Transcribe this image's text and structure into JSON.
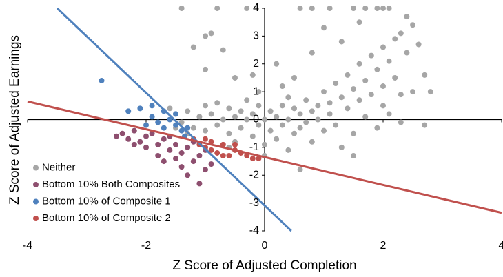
{
  "chart_data": {
    "type": "scatter",
    "x_label": "Z Score of Adjusted Completion",
    "y_label": "Z Score of Adjusted Earnings",
    "xlim": [
      -4,
      4
    ],
    "ylim": [
      -4,
      4
    ],
    "xticks": [
      -4,
      -2,
      0,
      2,
      4
    ],
    "yticks": [
      -4,
      -3,
      -2,
      -1,
      0,
      1,
      2,
      3,
      4
    ],
    "grid": false,
    "legend_position": "lower left",
    "series": [
      {
        "name": "Neither",
        "color": "#a6a6a6",
        "x": [
          -1.6,
          -1.5,
          -1.4,
          -1.3,
          -1.2,
          -1.1,
          -1.0,
          -1.0,
          -0.9,
          -0.8,
          -0.8,
          -0.7,
          -0.6,
          -0.6,
          -0.5,
          -0.5,
          -0.4,
          -0.4,
          -0.3,
          -0.3,
          -0.2,
          -0.2,
          -0.1,
          -0.1,
          0.0,
          0.0,
          0.1,
          0.1,
          0.2,
          0.2,
          0.3,
          0.3,
          0.4,
          0.4,
          0.5,
          0.5,
          0.6,
          0.6,
          0.7,
          0.7,
          0.8,
          0.8,
          0.9,
          0.9,
          1.0,
          1.0,
          1.1,
          1.1,
          1.2,
          1.2,
          1.3,
          1.4,
          1.4,
          1.5,
          1.5,
          1.6,
          1.6,
          1.7,
          1.8,
          1.8,
          1.9,
          2.0,
          2.0,
          2.1,
          2.1,
          2.2,
          2.2,
          2.3,
          2.3,
          2.4,
          2.5,
          2.5,
          2.6,
          2.7,
          2.7,
          2.8,
          -1.0,
          -0.9,
          -0.7,
          -1.2,
          -1.0,
          -0.5,
          0.2,
          0.5,
          0.8,
          -0.2,
          0.6,
          1.3,
          1.5,
          -1.4,
          -0.8,
          -0.3,
          0.6,
          0.8,
          1.1,
          1.5,
          1.7,
          1.9,
          2.0,
          2.1,
          1.6,
          1.3,
          1.0,
          2.4,
          0.4,
          -0.6,
          0.0,
          1.9,
          2.3,
          -1.5,
          -1.3,
          -0.1,
          0.3,
          1.7,
          2.0
        ],
        "y": [
          0.4,
          0.2,
          -0.1,
          0.3,
          -0.3,
          0.1,
          0.5,
          -0.4,
          0.2,
          -0.2,
          0.6,
          0.0,
          -0.5,
          0.4,
          0.1,
          -0.8,
          0.3,
          -0.3,
          0.0,
          0.7,
          -0.6,
          0.2,
          -0.2,
          0.5,
          0.0,
          -0.9,
          0.3,
          -0.4,
          0.1,
          -0.7,
          0.5,
          -0.2,
          0.0,
          -1.1,
          0.4,
          -0.5,
          0.2,
          -0.3,
          0.7,
          -0.1,
          0.3,
          -0.8,
          0.5,
          0.0,
          1.0,
          -0.4,
          0.6,
          0.2,
          1.3,
          -0.2,
          0.8,
          0.4,
          1.6,
          1.1,
          -0.5,
          2.0,
          0.7,
          1.4,
          2.3,
          0.9,
          1.8,
          2.6,
          1.2,
          2.1,
          0.2,
          2.9,
          1.5,
          3.1,
          0.9,
          2.4,
          3.4,
          1.0,
          2.7,
          1.6,
          -0.2,
          1.0,
          3.0,
          3.1,
          2.5,
          2.6,
          1.8,
          1.5,
          2.0,
          1.5,
          2.4,
          1.6,
          -1.8,
          -1.0,
          -1.3,
          4.0,
          4.0,
          4.0,
          4.0,
          4.0,
          4.0,
          4.0,
          4.0,
          4.0,
          4.0,
          4.0,
          3.5,
          2.8,
          3.3,
          3.7,
          0.8,
          -1.0,
          -1.3,
          -0.3,
          -0.1,
          -0.3,
          -0.5,
          1.0,
          1.2,
          0.1,
          0.5
        ]
      },
      {
        "name": "Bottom 10% Both Composites",
        "color": "#8e4f6f",
        "x": [
          -2.5,
          -2.4,
          -2.3,
          -2.2,
          -2.1,
          -2.0,
          -2.0,
          -1.9,
          -1.8,
          -1.8,
          -1.7,
          -1.6,
          -1.6,
          -1.5,
          -1.5,
          -1.4,
          -1.4,
          -1.3,
          -1.3,
          -1.2,
          -1.2,
          -1.1,
          -1.1,
          -1.0,
          -1.0,
          -0.9,
          -2.2,
          -1.7
        ],
        "y": [
          -0.6,
          -0.5,
          -0.7,
          -0.4,
          -0.8,
          -0.6,
          -1.0,
          -0.5,
          -0.9,
          -1.3,
          -0.7,
          -1.1,
          -0.6,
          -1.4,
          -0.9,
          -1.2,
          -1.7,
          -1.0,
          -2.0,
          -1.5,
          -0.8,
          -2.3,
          -1.3,
          -1.8,
          -1.1,
          -1.6,
          -0.9,
          -1.5
        ]
      },
      {
        "name": "Bottom 10% of Composite 1",
        "color": "#4f81bd",
        "x": [
          -2.75,
          -2.3,
          -2.1,
          -1.9,
          -1.8,
          -1.7,
          -1.6,
          -1.5,
          -1.5,
          -1.4,
          -1.3,
          -1.7,
          -2.0,
          -1.9,
          -1.35
        ],
        "y": [
          1.4,
          0.3,
          0.4,
          0.1,
          -0.1,
          0.3,
          0.0,
          -0.2,
          0.2,
          -0.4,
          -0.3,
          -0.3,
          -0.2,
          0.5,
          -0.6
        ]
      },
      {
        "name": "Bottom 10% of Composite 2",
        "color": "#c0504d",
        "x": [
          -1.2,
          -1.1,
          -1.0,
          -0.9,
          -0.9,
          -0.8,
          -0.7,
          -0.6,
          -0.5,
          -0.4,
          -0.3,
          -0.2,
          -0.1,
          -0.7,
          -1.0,
          -0.5
        ],
        "y": [
          -0.7,
          -0.9,
          -0.7,
          -1.1,
          -0.8,
          -1.2,
          -0.9,
          -1.3,
          -1.1,
          -1.2,
          -1.3,
          -1.4,
          -1.4,
          -1.3,
          -1.0,
          -0.9
        ]
      }
    ],
    "trendlines": [
      {
        "color": "#4f81bd",
        "x": [
          -3.5,
          0.45
        ],
        "y": [
          4,
          -4
        ]
      },
      {
        "color": "#c0504d",
        "x": [
          -4,
          4
        ],
        "y": [
          0.65,
          -3.35
        ]
      }
    ]
  }
}
